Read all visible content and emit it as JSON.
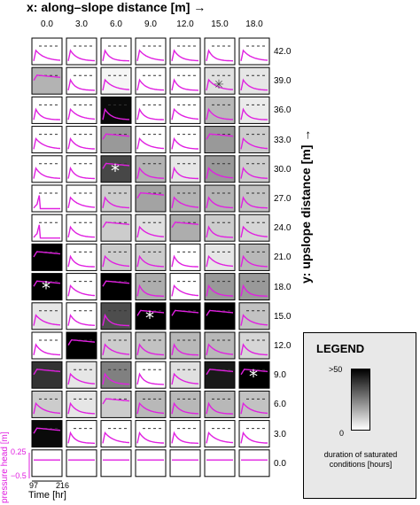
{
  "title": "x: along–slope distance [m] →",
  "ylabel": "y: upslope distance [m] →",
  "x_ticks": [
    "0.0",
    "3.0",
    "6.0",
    "9.0",
    "12.0",
    "15.0",
    "18.0"
  ],
  "y_ticks": [
    "42.0",
    "39.0",
    "36.0",
    "33.0",
    "30.0",
    "27.0",
    "24.0",
    "21.0",
    "18.0",
    "15.0",
    "12.0",
    "9.0",
    "6.0",
    "3.0",
    "0.0"
  ],
  "pressure_head_label": "pressure head [m]",
  "pressure_ticks": [
    "0.25",
    "−0.5"
  ],
  "time_ticks": [
    "97",
    "216"
  ],
  "time_label": "Time [hr]",
  "legend": {
    "title": "LEGEND",
    "max_label": ">50",
    "min_label": "0",
    "description": "duration of saturated conditions [hours]"
  },
  "colors": {
    "pressure_line": "#e020e0",
    "threshold_line": "#333333",
    "marker": "#ffffff"
  },
  "chart_data": {
    "type": "heatmap",
    "title": "x: along–slope distance [m] →",
    "xlabel": "x: along–slope distance [m]",
    "ylabel": "y: upslope distance [m]",
    "x": [
      0.0,
      3.0,
      6.0,
      9.0,
      12.0,
      15.0,
      18.0
    ],
    "y": [
      42.0,
      39.0,
      36.0,
      33.0,
      30.0,
      27.0,
      24.0,
      21.0,
      18.0,
      15.0,
      12.0,
      9.0,
      6.0,
      3.0,
      0.0
    ],
    "value_label": "duration of saturated conditions [hours]",
    "value_range": [
      0,
      50
    ],
    "values": [
      [
        0,
        0,
        0,
        0,
        0,
        0,
        0
      ],
      [
        15,
        0,
        2,
        0,
        0,
        6,
        5
      ],
      [
        0,
        0,
        48,
        0,
        0,
        14,
        4
      ],
      [
        0,
        0,
        20,
        0,
        0,
        20,
        10
      ],
      [
        0,
        0,
        36,
        15,
        5,
        20,
        10
      ],
      [
        0,
        0,
        10,
        18,
        15,
        15,
        12
      ],
      [
        0,
        0,
        10,
        6,
        16,
        10,
        8
      ],
      [
        50,
        0,
        10,
        10,
        0,
        5,
        14
      ],
      [
        50,
        0,
        50,
        16,
        0,
        20,
        20
      ],
      [
        5,
        0,
        35,
        50,
        50,
        50,
        12
      ],
      [
        0,
        50,
        10,
        12,
        14,
        14,
        8
      ],
      [
        40,
        5,
        25,
        0,
        6,
        45,
        50
      ],
      [
        10,
        5,
        10,
        14,
        14,
        14,
        12
      ],
      [
        48,
        0,
        0,
        0,
        0,
        0,
        0
      ],
      [
        0,
        0,
        0,
        0,
        0,
        0,
        0
      ]
    ],
    "markers": [
      {
        "x": 15.0,
        "y": 39.0,
        "symbol": "✳",
        "style": "hatched"
      },
      {
        "x": 6.0,
        "y": 30.0,
        "symbol": "*"
      },
      {
        "x": 0.0,
        "y": 18.0,
        "symbol": "*"
      },
      {
        "x": 9.0,
        "y": 15.0,
        "symbol": "*"
      },
      {
        "x": 18.0,
        "y": 9.0,
        "symbol": "*"
      }
    ],
    "pressure_head_range": [
      -0.5,
      0.25
    ],
    "time_range": [
      97,
      216
    ],
    "curve_shape": [
      [
        "decay",
        "decay",
        "decay",
        "decay",
        "decay",
        "decay",
        "decay"
      ],
      [
        "plateau",
        "decay",
        "decay",
        "decay",
        "decay",
        "decay",
        "decay"
      ],
      [
        "decay",
        "decay",
        "decay",
        "decay",
        "decay",
        "decay",
        "decay"
      ],
      [
        "decay",
        "decay",
        "plateau",
        "decay",
        "decay",
        "plateau",
        "decay"
      ],
      [
        "decay",
        "decay",
        "plateau",
        "decay",
        "decay",
        "decay",
        "decay"
      ],
      [
        "spike",
        "decay",
        "decay",
        "plateau",
        "decay",
        "decay",
        "decay"
      ],
      [
        "spike",
        "decay",
        "plateau",
        "decay",
        "plateau",
        "decay",
        "decay"
      ],
      [
        "plateau",
        "decay",
        "decay",
        "decay",
        "decay",
        "decay",
        "decay"
      ],
      [
        "plateau",
        "decay",
        "plateau",
        "decay",
        "decay",
        "decay",
        "decay"
      ],
      [
        "decay",
        "decay",
        "decay",
        "plateau",
        "plateau",
        "plateau",
        "decay"
      ],
      [
        "decay",
        "plateau",
        "decay",
        "decay",
        "decay",
        "decay",
        "decay"
      ],
      [
        "plateau",
        "decay",
        "decay",
        "decay",
        "decay",
        "plateau",
        "plateau"
      ],
      [
        "decay",
        "decay",
        "plateau",
        "decay",
        "decay",
        "decay",
        "decay"
      ],
      [
        "plateau",
        "decay",
        "decay",
        "decay",
        "decay",
        "decay",
        "decay"
      ],
      [
        "flat",
        "flat",
        "flat",
        "flat",
        "flat",
        "flat",
        "flat"
      ]
    ]
  }
}
